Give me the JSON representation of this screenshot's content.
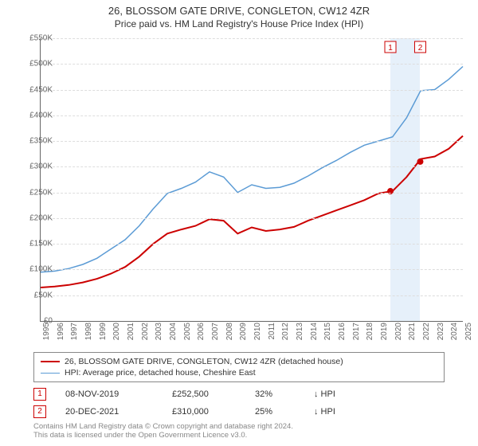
{
  "title_line1": "26, BLOSSOM GATE DRIVE, CONGLETON, CW12 4ZR",
  "title_line2": "Price paid vs. HM Land Registry's House Price Index (HPI)",
  "chart": {
    "type": "line",
    "background_color": "#ffffff",
    "grid_color": "#dddddd",
    "axis_color": "#666666",
    "x_start_year": 1995,
    "x_end_year": 2025,
    "x_tick_step": 1,
    "ylim_min": 0,
    "ylim_max": 550000,
    "ytick_step": 50000,
    "ytick_labels": [
      "£0",
      "£50K",
      "£100K",
      "£150K",
      "£200K",
      "£250K",
      "£300K",
      "£350K",
      "£400K",
      "£450K",
      "£500K",
      "£550K"
    ],
    "label_fontsize": 10,
    "series": [
      {
        "name": "property_price",
        "legend_label": "26, BLOSSOM GATE DRIVE, CONGLETON, CW12 4ZR (detached house)",
        "color": "#cc0000",
        "line_width": 2,
        "x": [
          1995,
          1996,
          1997,
          1998,
          1999,
          2000,
          2001,
          2002,
          2003,
          2004,
          2005,
          2006,
          2007,
          2008,
          2009,
          2010,
          2011,
          2012,
          2013,
          2014,
          2015,
          2016,
          2017,
          2018,
          2019,
          2020,
          2021,
          2022,
          2023,
          2024,
          2025
        ],
        "y": [
          65000,
          67000,
          70000,
          75000,
          82000,
          92000,
          105000,
          125000,
          150000,
          170000,
          178000,
          185000,
          198000,
          195000,
          170000,
          182000,
          175000,
          178000,
          183000,
          195000,
          205000,
          215000,
          225000,
          235000,
          248000,
          252500,
          280000,
          315000,
          320000,
          335000,
          360000
        ]
      },
      {
        "name": "hpi_index",
        "legend_label": "HPI: Average price, detached house, Cheshire East",
        "color": "#5b9bd5",
        "line_width": 1.5,
        "x": [
          1995,
          1996,
          1997,
          1998,
          1999,
          2000,
          2001,
          2002,
          2003,
          2004,
          2005,
          2006,
          2007,
          2008,
          2009,
          2010,
          2011,
          2012,
          2013,
          2014,
          2015,
          2016,
          2017,
          2018,
          2019,
          2020,
          2021,
          2022,
          2023,
          2024,
          2025
        ],
        "y": [
          95000,
          97000,
          102000,
          110000,
          122000,
          140000,
          158000,
          185000,
          218000,
          248000,
          258000,
          270000,
          290000,
          280000,
          250000,
          265000,
          258000,
          260000,
          268000,
          282000,
          298000,
          312000,
          328000,
          342000,
          350000,
          358000,
          395000,
          448000,
          450000,
          470000,
          495000
        ]
      }
    ],
    "sale_markers": [
      {
        "index": 1,
        "year": 2019.85,
        "price": 252500,
        "color": "#cc0000",
        "border_color": "#cc0000"
      },
      {
        "index": 2,
        "year": 2021.97,
        "price": 310000,
        "color": "#cc0000",
        "border_color": "#cc0000"
      }
    ],
    "sale_band": {
      "start_year": 2019.85,
      "end_year": 2021.97,
      "color": "#e6f0fa"
    }
  },
  "sales_table": {
    "columns": [
      "marker",
      "date",
      "price",
      "pct",
      "arrow",
      "comparison"
    ],
    "rows": [
      {
        "marker": "1",
        "date": "08-NOV-2019",
        "price": "£252,500",
        "pct": "32%",
        "arrow": "↓",
        "comparison": "HPI"
      },
      {
        "marker": "2",
        "date": "20-DEC-2021",
        "price": "£310,000",
        "pct": "25%",
        "arrow": "↓",
        "comparison": "HPI"
      }
    ],
    "marker_border_color": "#cc0000",
    "marker_text_color": "#cc0000"
  },
  "footer_line1": "Contains HM Land Registry data © Crown copyright and database right 2024.",
  "footer_line2": "This data is licensed under the Open Government Licence v3.0."
}
